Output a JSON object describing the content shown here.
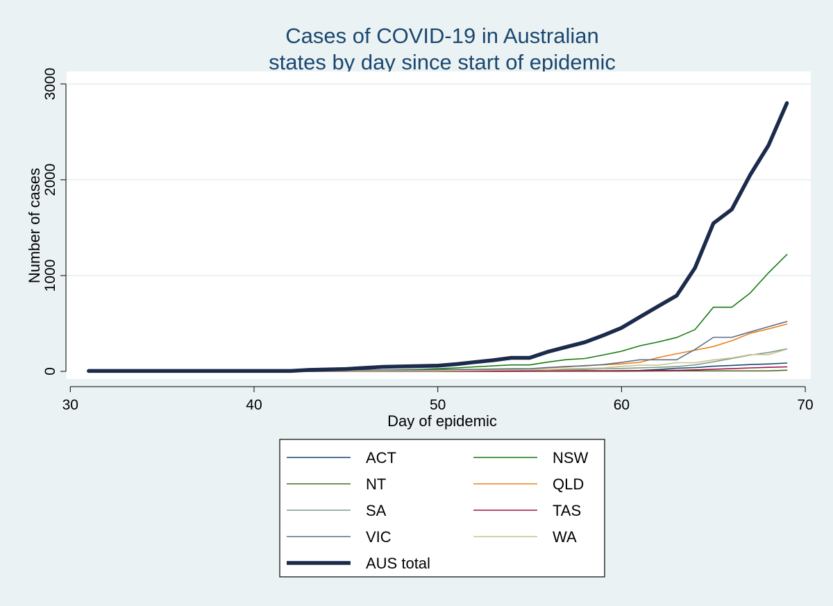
{
  "chart_data": {
    "type": "line",
    "title": [
      "Cases of COVID-19 in Australian",
      "states by day since start of epidemic"
    ],
    "xlabel": "Day of epidemic",
    "ylabel": "Number of cases",
    "xlim": [
      29.8,
      70.3
    ],
    "ylim": [
      -80,
      3130
    ],
    "xticks": [
      30,
      40,
      50,
      60,
      70
    ],
    "yticks": [
      0,
      1000,
      2000,
      3000
    ],
    "grid": "horizontal",
    "legend_position": "bottom",
    "series": [
      {
        "name": "ACT",
        "color": "#1a476f",
        "width": 1.6,
        "x": [
          31,
          42,
          50,
          55,
          56,
          57,
          58,
          59,
          60,
          61,
          62,
          63,
          64,
          65,
          66,
          67,
          68,
          69
        ],
        "y": [
          0,
          0,
          0,
          1,
          2,
          2,
          3,
          4,
          6,
          9,
          19,
          32,
          39,
          53,
          62,
          71,
          77,
          87
        ]
      },
      {
        "name": "NSW",
        "color": "#157a0f",
        "width": 1.6,
        "x": [
          31,
          42,
          43,
          45,
          47,
          49,
          50,
          51,
          52,
          53,
          54,
          55,
          56,
          57,
          58,
          59,
          60,
          61,
          62,
          63,
          64,
          65,
          66,
          67,
          68,
          69
        ],
        "y": [
          4,
          4,
          4,
          4,
          13,
          21,
          28,
          36,
          47,
          57,
          67,
          67,
          97,
          122,
          134,
          171,
          210,
          267,
          307,
          353,
          436,
          669,
          669,
          818,
          1029,
          1219
        ]
      },
      {
        "name": "NT",
        "color": "#4d6b1c",
        "width": 1.6,
        "x": [
          31,
          53,
          55,
          57,
          60,
          62,
          64,
          66,
          68,
          69
        ],
        "y": [
          0,
          0,
          1,
          1,
          1,
          3,
          5,
          5,
          5,
          12
        ]
      },
      {
        "name": "QLD",
        "color": "#e8801a",
        "width": 1.6,
        "x": [
          31,
          42,
          45,
          47,
          50,
          52,
          53,
          54,
          55,
          56,
          57,
          58,
          59,
          60,
          61,
          62,
          63,
          64,
          65,
          66,
          67,
          68,
          69
        ],
        "y": [
          1,
          3,
          5,
          7,
          9,
          11,
          15,
          20,
          27,
          35,
          46,
          61,
          68,
          78,
          94,
          144,
          184,
          221,
          259,
          319,
          397,
          443,
          493
        ]
      },
      {
        "name": "SA",
        "color": "#7a9a8a",
        "width": 1.6,
        "x": [
          31,
          42,
          46,
          50,
          53,
          55,
          56,
          57,
          58,
          59,
          60,
          61,
          62,
          63,
          64,
          65,
          66,
          67,
          68,
          69
        ],
        "y": [
          0,
          1,
          2,
          2,
          3,
          7,
          16,
          18,
          20,
          29,
          30,
          37,
          42,
          50,
          67,
          100,
          134,
          170,
          197,
          235
        ]
      },
      {
        "name": "TAS",
        "color": "#9e1048",
        "width": 1.6,
        "x": [
          31,
          45,
          50,
          54,
          56,
          57,
          58,
          59,
          60,
          61,
          62,
          63,
          64,
          65,
          66,
          67,
          68,
          69
        ],
        "y": [
          0,
          1,
          1,
          2,
          3,
          5,
          6,
          6,
          7,
          7,
          10,
          10,
          16,
          22,
          28,
          36,
          42,
          47
        ]
      },
      {
        "name": "VIC",
        "color": "#5b6e85",
        "width": 1.6,
        "x": [
          31,
          42,
          45,
          48,
          50,
          52,
          54,
          55,
          56,
          57,
          58,
          59,
          60,
          61,
          62,
          63,
          64,
          65,
          66,
          67,
          68,
          69
        ],
        "y": [
          1,
          9,
          11,
          15,
          18,
          21,
          27,
          27,
          40,
          51,
          57,
          71,
          94,
          121,
          121,
          121,
          229,
          355,
          355,
          411,
          466,
          520
        ]
      },
      {
        "name": "WA",
        "color": "#c9c290",
        "width": 1.6,
        "x": [
          31,
          43,
          48,
          50,
          52,
          54,
          55,
          56,
          57,
          58,
          59,
          60,
          61,
          62,
          63,
          64,
          65,
          66,
          67,
          68,
          69
        ],
        "y": [
          0,
          2,
          3,
          4,
          9,
          14,
          17,
          18,
          28,
          31,
          35,
          52,
          64,
          64,
          90,
          90,
          120,
          140,
          175,
          175,
          231
        ]
      },
      {
        "name": "AUS total",
        "color": "#1c2b4b",
        "width": 5.5,
        "x": [
          31,
          42,
          43,
          45,
          47,
          50,
          51,
          52,
          53,
          54,
          55,
          56,
          57,
          58,
          59,
          60,
          61,
          62,
          63,
          64,
          65,
          66,
          67,
          68,
          69
        ],
        "y": [
          4,
          4,
          15,
          24,
          47,
          59,
          75,
          96,
          116,
          141,
          141,
          205,
          255,
          303,
          375,
          454,
          568,
          680,
          790,
          1080,
          1545,
          1690,
          2050,
          2360,
          2800
        ]
      }
    ]
  }
}
